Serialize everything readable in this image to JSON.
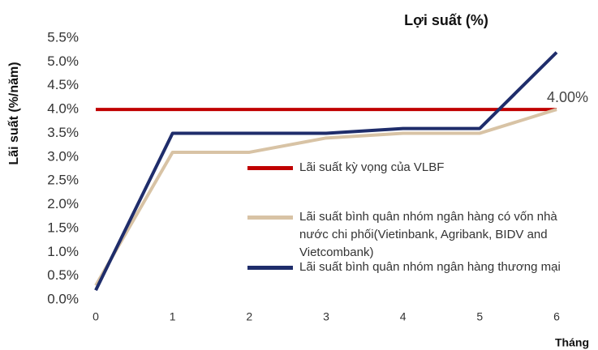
{
  "chart_data": {
    "type": "line",
    "title": "Lợi suất (%)",
    "y_label": "Lãi suất (%/năm)",
    "x_label": "Tháng",
    "x": [
      0,
      1,
      2,
      3,
      4,
      5,
      6
    ],
    "xlim": [
      0,
      6
    ],
    "xticks": [
      0,
      1,
      2,
      3,
      4,
      5,
      6
    ],
    "ylim": [
      0,
      5.5
    ],
    "yticks": [
      {
        "value": 0,
        "label": "0.0%"
      },
      {
        "value": 0.5,
        "label": "0.5%"
      },
      {
        "value": 1,
        "label": "1.0%"
      },
      {
        "value": 1.5,
        "label": "1.5%"
      },
      {
        "value": 2,
        "label": "2.0%"
      },
      {
        "value": 2.5,
        "label": "2.5%"
      },
      {
        "value": 3,
        "label": "3.0%"
      },
      {
        "value": 3.5,
        "label": "3.5%"
      },
      {
        "value": 4,
        "label": "4.0%"
      },
      {
        "value": 4.5,
        "label": "4.5%"
      },
      {
        "value": 5,
        "label": "5.0%"
      },
      {
        "value": 5.5,
        "label": "5.5%"
      }
    ],
    "grid": false,
    "series": [
      {
        "name": "Lãi suất kỳ vọng của VLBF",
        "color": "#c00000",
        "values": [
          4,
          4,
          4,
          4,
          4,
          4,
          4
        ],
        "value_labels": [
          null,
          null,
          null,
          null,
          null,
          null,
          "4.00%"
        ]
      },
      {
        "name": "Lãi suất bình quân nhóm ngân hàng có vốn nhà nước chi phối(Vietinbank, Agribank, BIDV and Vietcombank)",
        "color": "#d8c3a5",
        "values": [
          0.3,
          3.1,
          3.1,
          3.4,
          3.5,
          3.5,
          4.0
        ]
      },
      {
        "name": "Lãi suất bình quân nhóm ngân hàng thương mại",
        "color": "#1f2d6b",
        "values": [
          0.2,
          3.5,
          3.5,
          3.5,
          3.6,
          3.6,
          5.2
        ]
      }
    ]
  }
}
